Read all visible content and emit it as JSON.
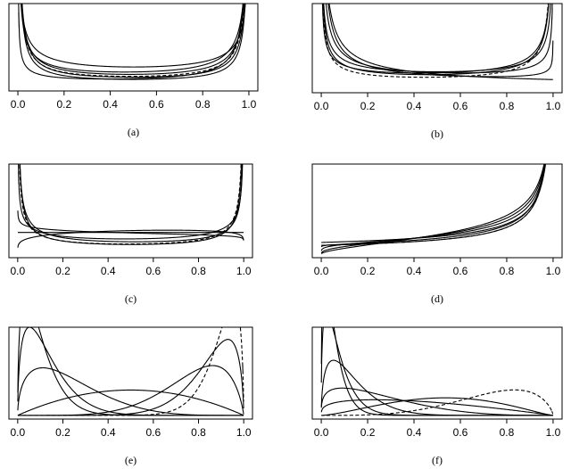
{
  "chart_data": [
    {
      "type": "line",
      "caption": "(a)",
      "xlim": [
        0,
        1
      ],
      "x_ticks": [
        "0.0",
        "0.2",
        "0.4",
        "0.6",
        "0.8",
        "1.0"
      ],
      "ylim": [
        0,
        2.5
      ],
      "y_axis_shown": false,
      "series": [
        {
          "style": "solid",
          "beta_a": 0.15,
          "beta_b": 0.15
        },
        {
          "style": "solid",
          "beta_a": 0.2,
          "beta_b": 0.2
        },
        {
          "style": "solid",
          "beta_a": 0.3,
          "beta_b": 0.25
        },
        {
          "style": "solid",
          "beta_a": 0.4,
          "beta_b": 0.3
        },
        {
          "style": "solid",
          "beta_a": 0.5,
          "beta_b": 0.5
        },
        {
          "style": "solid",
          "beta_a": 0.45,
          "beta_b": 0.12
        },
        {
          "style": "dashed",
          "beta_a": 0.25,
          "beta_b": 0.2
        }
      ]
    },
    {
      "type": "line",
      "caption": "(b)",
      "xlim": [
        0,
        1
      ],
      "x_ticks": [
        "0.0",
        "0.2",
        "0.4",
        "0.6",
        "0.8",
        "1.0"
      ],
      "ylim": [
        0,
        3
      ],
      "y_axis_shown": false,
      "series": [
        {
          "style": "solid",
          "beta_a": 0.35,
          "beta_b": 1.0
        },
        {
          "style": "solid",
          "beta_a": 0.3,
          "beta_b": 0.75
        },
        {
          "style": "solid",
          "beta_a": 0.4,
          "beta_b": 0.6
        },
        {
          "style": "solid",
          "beta_a": 0.5,
          "beta_b": 0.5
        },
        {
          "style": "solid",
          "beta_a": 0.45,
          "beta_b": 0.35
        },
        {
          "style": "solid",
          "beta_a": 0.55,
          "beta_b": 0.4
        },
        {
          "style": "dashed",
          "beta_a": 0.4,
          "beta_b": 0.25
        }
      ]
    },
    {
      "type": "line",
      "caption": "(c)",
      "xlim": [
        0,
        1
      ],
      "x_ticks": [
        "0.0",
        "0.2",
        "0.4",
        "0.6",
        "0.8",
        "1.0"
      ],
      "ylim": [
        0,
        4
      ],
      "y_axis_shown": false,
      "series": [
        {
          "style": "solid",
          "beta_a": 1.0,
          "beta_b": 1.0
        },
        {
          "style": "solid",
          "beta_a": 0.4,
          "beta_b": 0.45
        },
        {
          "style": "solid",
          "beta_a": 0.3,
          "beta_b": 0.3
        },
        {
          "style": "solid",
          "beta_a": 0.6,
          "beta_b": 0.55
        },
        {
          "style": "solid",
          "beta_a": 1.2,
          "beta_b": 1.1
        },
        {
          "style": "solid",
          "beta_a": 0.9,
          "beta_b": 1.05
        },
        {
          "style": "dashed",
          "beta_a": 0.35,
          "beta_b": 0.3
        }
      ]
    },
    {
      "type": "line",
      "caption": "(d)",
      "xlim": [
        0,
        1
      ],
      "x_ticks": [
        "0.0",
        "0.2",
        "0.4",
        "0.6",
        "0.8",
        "1.0"
      ],
      "ylim": [
        0,
        3
      ],
      "y_axis_shown": false,
      "series": [
        {
          "style": "solid",
          "beta_a": 1.6,
          "beta_b": 0.55
        },
        {
          "style": "solid",
          "beta_a": 1.4,
          "beta_b": 0.5
        },
        {
          "style": "solid",
          "beta_a": 1.2,
          "beta_b": 0.45
        },
        {
          "style": "solid",
          "beta_a": 1.0,
          "beta_b": 0.4
        },
        {
          "style": "solid",
          "beta_a": 1.05,
          "beta_b": 0.35
        },
        {
          "style": "solid",
          "beta_a": 1.0,
          "beta_b": 0.3
        },
        {
          "style": "dashed",
          "beta_a": 1.0,
          "beta_b": 0.3
        }
      ]
    },
    {
      "type": "line",
      "caption": "(e)",
      "xlim": [
        0,
        1
      ],
      "x_ticks": [
        "0.0",
        "0.2",
        "0.4",
        "0.6",
        "0.8",
        "1.0"
      ],
      "ylim": [
        0,
        5
      ],
      "y_axis_shown": false,
      "series": [
        {
          "style": "solid",
          "beta_a": 1.5,
          "beta_b": 14
        },
        {
          "style": "solid",
          "beta_a": 1.5,
          "beta_b": 10
        },
        {
          "style": "solid",
          "beta_a": 1.5,
          "beta_b": 5
        },
        {
          "style": "solid",
          "beta_a": 2,
          "beta_b": 2
        },
        {
          "style": "solid",
          "beta_a": 6,
          "beta_b": 1.8
        },
        {
          "style": "solid",
          "beta_a": 9,
          "beta_b": 1.6
        },
        {
          "style": "dashed",
          "beta_a": 14,
          "beta_b": 1.6
        }
      ]
    },
    {
      "type": "line",
      "caption": "(f)",
      "xlim": [
        0,
        1
      ],
      "x_ticks": [
        "0.0",
        "0.2",
        "0.4",
        "0.6",
        "0.8",
        "1.0"
      ],
      "ylim": [
        0,
        8
      ],
      "y_axis_shown": false,
      "series": [
        {
          "style": "solid",
          "beta_a": 1.4,
          "beta_b": 25
        },
        {
          "style": "solid",
          "beta_a": 1.4,
          "beta_b": 18
        },
        {
          "style": "solid",
          "beta_a": 1.5,
          "beta_b": 10
        },
        {
          "style": "solid",
          "beta_a": 1.3,
          "beta_b": 4
        },
        {
          "style": "solid",
          "beta_a": 1.3,
          "beta_b": 2
        },
        {
          "style": "solid",
          "beta_a": 2.5,
          "beta_b": 2.3
        },
        {
          "style": "dashed",
          "beta_a": 4.5,
          "beta_b": 1.7
        }
      ]
    }
  ]
}
